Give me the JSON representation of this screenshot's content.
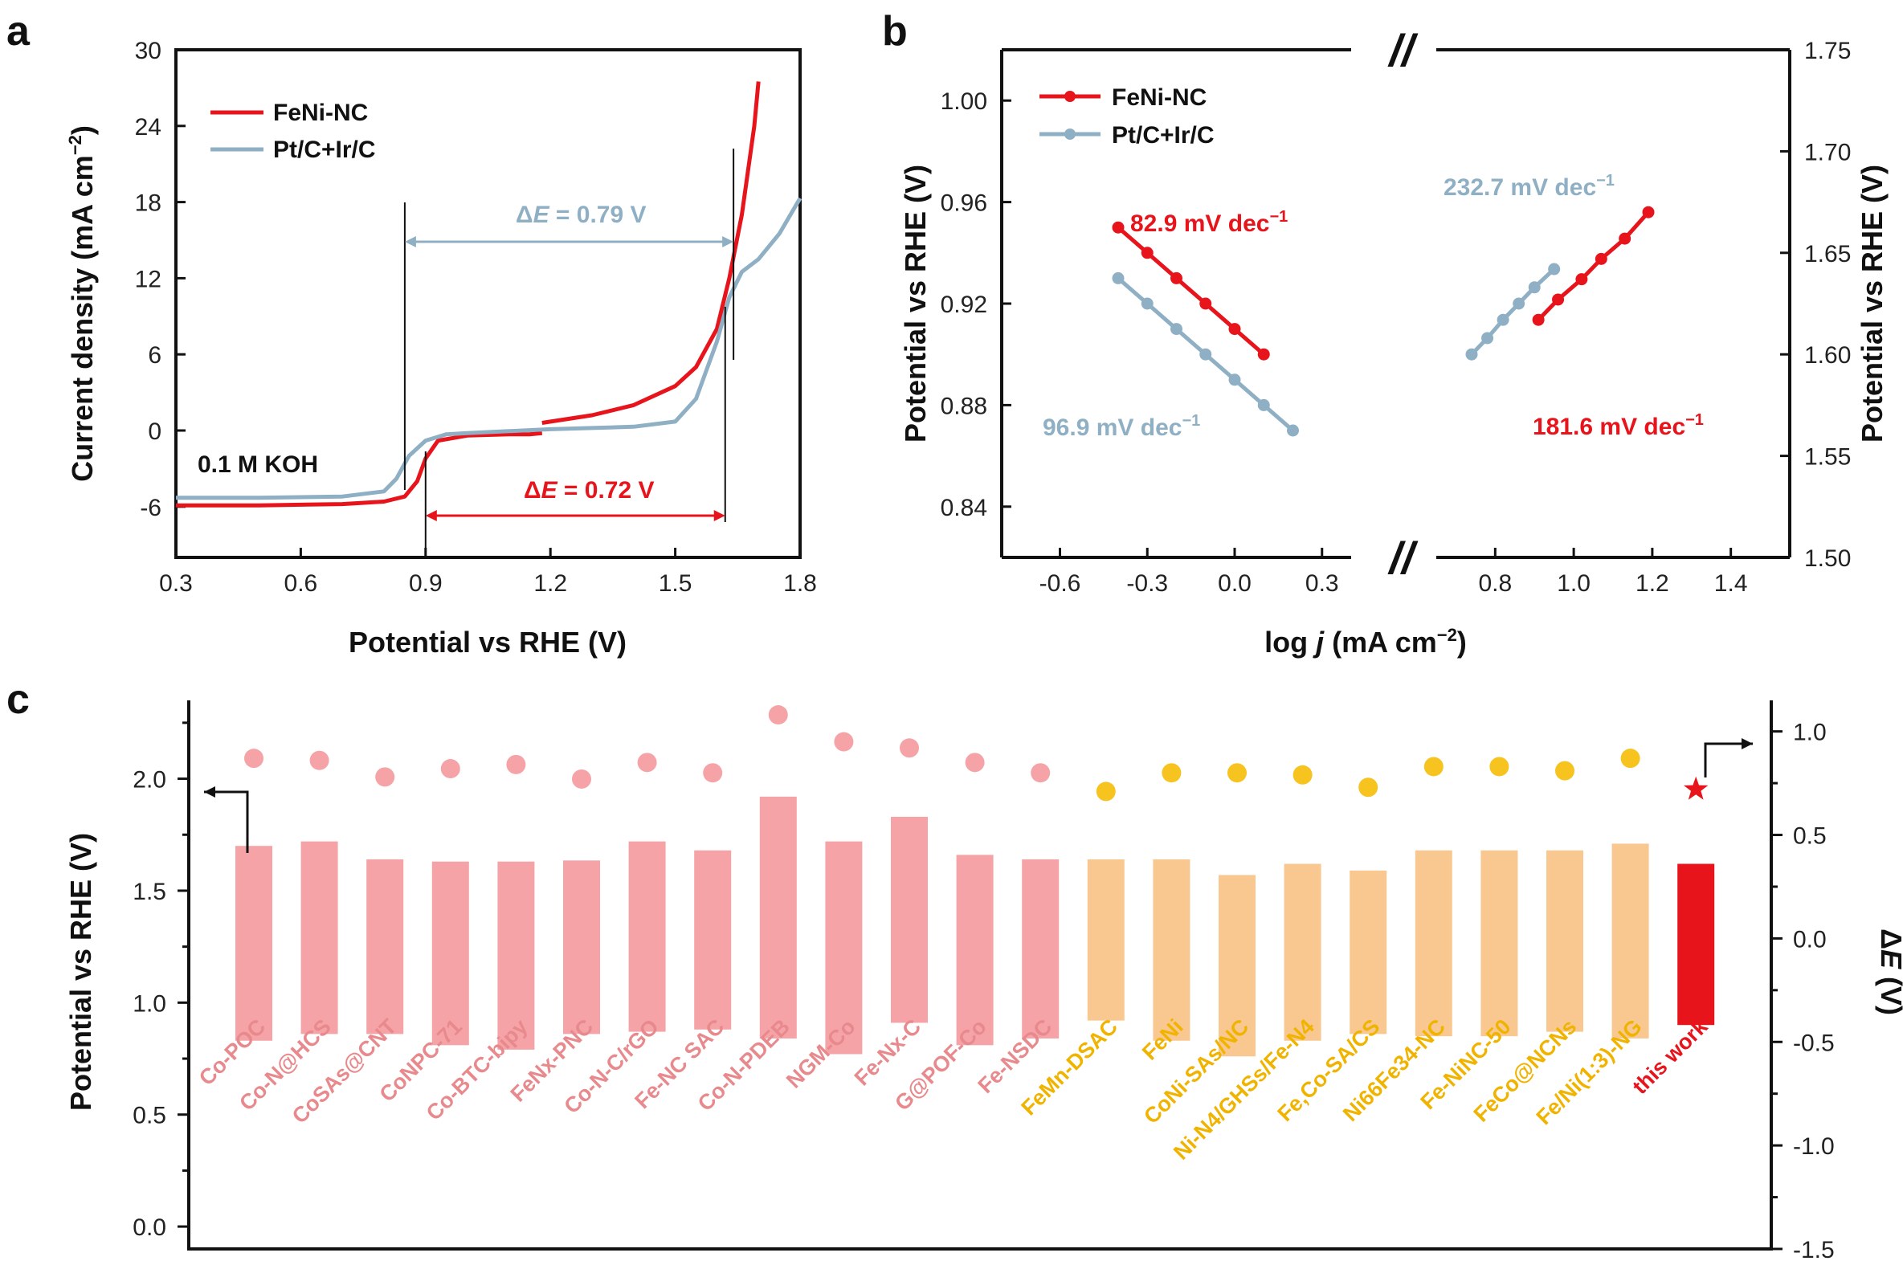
{
  "panels": {
    "a": {
      "label": "a",
      "xlabel": "Potential vs RHE (V)",
      "ylabel_main": "Current density (mA cm",
      "ylabel_sup": "−2",
      "ylabel_end": ")",
      "electrolyte": "0.1 M KOH",
      "legend": [
        "FeNi-NC",
        "Pt/C+Ir/C"
      ],
      "dE1_prefix": "Δ",
      "dE1_italic": "E",
      "dE1_suffix": " = 0.79 V",
      "dE2_prefix": "Δ",
      "dE2_italic": "E",
      "dE2_suffix": " = 0.72 V",
      "xticks": [
        "0.3",
        "0.6",
        "0.9",
        "1.2",
        "1.5",
        "1.8"
      ],
      "yticks": [
        "-6",
        "0",
        "6",
        "12",
        "18",
        "24",
        "30"
      ]
    },
    "b": {
      "label": "b",
      "xlabel_pre": "log ",
      "xlabel_it": "j",
      "xlabel_unit": " (mA cm",
      "xlabel_sup": "−2",
      "xlabel_end": ")",
      "ylabel_left": "Potential vs RHE (V)",
      "ylabel_right": "Potential vs RHE (V)",
      "break_mark": "//",
      "legend": [
        "FeNi-NC",
        "Pt/C+Ir/C"
      ],
      "slope_ORR_FeNi": "82.9 mV dec",
      "slope_ORR_Pt": "96.9 mV dec",
      "slope_OER_Pt": "232.7 mV dec",
      "slope_OER_FeNi": "181.6 mV dec",
      "sup": "−1",
      "xticks_left": [
        "-0.6",
        "-0.3",
        "0.0",
        "0.3"
      ],
      "xticks_right": [
        "0.8",
        "1.0",
        "1.2",
        "1.4"
      ],
      "yticks_left": [
        "0.84",
        "0.88",
        "0.92",
        "0.96",
        "1.00"
      ],
      "yticks_right": [
        "1.50",
        "1.55",
        "1.60",
        "1.65",
        "1.70",
        "1.75"
      ]
    },
    "c": {
      "label": "c",
      "ylabel_left": "Potential vs RHE (V)",
      "ylabel_right_prefix": "Δ",
      "ylabel_right_italic": "E",
      "ylabel_right_suffix": " (V)",
      "yticks_left": [
        "0.0",
        "0.5",
        "1.0",
        "1.5",
        "2.0"
      ],
      "yticks_right": [
        "-1.5",
        "-1.0",
        "-0.5",
        "0.0",
        "0.5",
        "1.0"
      ]
    }
  },
  "colors": {
    "fenink": "#e8141c",
    "ptc": "#8fb0c4",
    "pink": "#f5a3a6",
    "pink_text": "#e88a8d",
    "orange": "#f8c890",
    "yellow": "#f7c31f",
    "yellow_text": "#f0b400",
    "red": "#e8141c"
  },
  "chart_data": [
    {
      "type": "line",
      "panel": "a",
      "xlim": [
        0.3,
        1.8
      ],
      "ylim": [
        -10,
        30
      ],
      "series": [
        {
          "name": "FeNi-NC",
          "color": "#e8141c",
          "x": [
            0.3,
            0.5,
            0.7,
            0.8,
            0.85,
            0.88,
            0.9,
            0.93,
            1.0,
            1.1,
            1.15,
            1.18
          ],
          "y": [
            -5.9,
            -5.9,
            -5.8,
            -5.6,
            -5.2,
            -4.0,
            -2.2,
            -0.8,
            -0.4,
            -0.3,
            -0.3,
            -0.2
          ],
          "x2": [
            1.18,
            1.3,
            1.4,
            1.5,
            1.55,
            1.6,
            1.63,
            1.66,
            1.69,
            1.7
          ],
          "y2": [
            0.6,
            1.2,
            2.0,
            3.5,
            5.0,
            8.0,
            12.0,
            17.0,
            24.0,
            27.5
          ]
        },
        {
          "name": "Pt/C+Ir/C",
          "color": "#8fb0c4",
          "x": [
            0.3,
            0.5,
            0.7,
            0.8,
            0.83,
            0.86,
            0.9,
            0.95,
            1.0,
            1.2,
            1.4,
            1.5,
            1.55,
            1.6,
            1.63,
            1.66,
            1.7,
            1.75,
            1.8
          ],
          "y": [
            -5.3,
            -5.3,
            -5.2,
            -4.8,
            -3.8,
            -2.0,
            -0.8,
            -0.3,
            -0.2,
            0.1,
            0.3,
            0.7,
            2.5,
            7.0,
            10.5,
            12.5,
            13.5,
            15.5,
            18.3
          ]
        }
      ],
      "markers": {
        "v1": 0.85,
        "v2": 0.9,
        "v3": 1.62,
        "v4": 1.64,
        "dE_top": 0.79,
        "dE_bottom": 0.72
      }
    },
    {
      "type": "line",
      "panel": "b",
      "xlim_left": [
        -0.8,
        0.4
      ],
      "xlim_right": [
        0.65,
        1.55
      ],
      "ylim_left": [
        0.82,
        1.02
      ],
      "ylim_right": [
        1.5,
        1.75
      ],
      "series": [
        {
          "name": "FeNi-NC",
          "axis": "left",
          "color": "#e8141c",
          "x": [
            -0.4,
            -0.3,
            -0.2,
            -0.1,
            0.0,
            0.1
          ],
          "y": [
            0.95,
            0.94,
            0.93,
            0.92,
            0.91,
            0.9
          ]
        },
        {
          "name": "Pt/C+Ir/C",
          "axis": "left",
          "color": "#8fb0c4",
          "x": [
            -0.4,
            -0.3,
            -0.2,
            -0.1,
            0.0,
            0.1,
            0.2
          ],
          "y": [
            0.93,
            0.92,
            0.91,
            0.9,
            0.89,
            0.88,
            0.87
          ]
        },
        {
          "name": "Pt/C+Ir/C",
          "axis": "right",
          "color": "#8fb0c4",
          "x": [
            0.74,
            0.78,
            0.82,
            0.86,
            0.9,
            0.95
          ],
          "y": [
            1.6,
            1.608,
            1.617,
            1.625,
            1.633,
            1.642
          ]
        },
        {
          "name": "FeNi-NC",
          "axis": "right",
          "color": "#e8141c",
          "x": [
            0.91,
            0.96,
            1.02,
            1.07,
            1.13,
            1.19
          ],
          "y": [
            1.617,
            1.627,
            1.637,
            1.647,
            1.657,
            1.67
          ]
        }
      ]
    },
    {
      "type": "bar",
      "panel": "c",
      "ylim_left": [
        -0.1,
        2.35
      ],
      "ylim_right": [
        -1.5,
        1.15
      ],
      "categories": [
        "Co-POC",
        "Co-N@HCS",
        "CoSAs@CNT",
        "CoNPC-71",
        "Co-BTC-bipy",
        "FeNx-PNC",
        "Co-N-C/rGO",
        "Fe-NC SAC",
        "Co-N-PDEB",
        "NGM-Co",
        "Fe-Nx-C",
        "G@POF-Co",
        "Fe-NSDC",
        "FeMn-DSAC",
        "FeNi",
        "CoNi-SAs/NC",
        "Ni-N4/GHSs/Fe-N4",
        "Fe,Co-SA/CS",
        "Ni66Fe34-NC",
        "Fe-NiNC-50",
        "FeCo@NCNs",
        "Fe/Ni(1:3)-NG",
        "this work"
      ],
      "bar_low": [
        0.83,
        0.86,
        0.86,
        0.81,
        0.79,
        0.86,
        0.87,
        0.88,
        0.84,
        0.77,
        0.91,
        0.81,
        0.84,
        0.92,
        0.83,
        0.76,
        0.83,
        0.86,
        0.85,
        0.85,
        0.87,
        0.84,
        0.9
      ],
      "bar_high": [
        1.7,
        1.72,
        1.64,
        1.63,
        1.63,
        1.635,
        1.72,
        1.68,
        1.92,
        1.72,
        1.83,
        1.66,
        1.64,
        1.64,
        1.64,
        1.57,
        1.62,
        1.59,
        1.68,
        1.68,
        1.68,
        1.71,
        1.62
      ],
      "delta_E": [
        0.87,
        0.86,
        0.78,
        0.82,
        0.84,
        0.77,
        0.85,
        0.8,
        1.08,
        0.95,
        0.92,
        0.85,
        0.8,
        0.71,
        0.8,
        0.8,
        0.79,
        0.73,
        0.83,
        0.83,
        0.81,
        0.87,
        0.72
      ],
      "group": [
        "pink",
        "pink",
        "pink",
        "pink",
        "pink",
        "pink",
        "pink",
        "pink",
        "pink",
        "pink",
        "pink",
        "pink",
        "pink",
        "orange",
        "orange",
        "orange",
        "orange",
        "orange",
        "orange",
        "orange",
        "orange",
        "orange",
        "red"
      ]
    }
  ]
}
